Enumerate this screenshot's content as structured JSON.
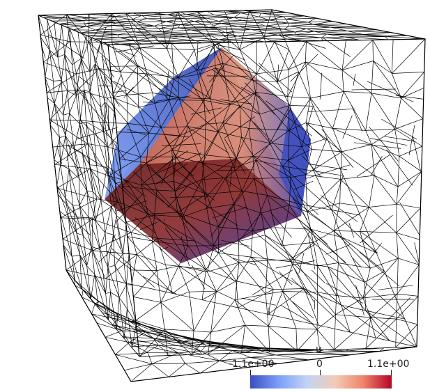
{
  "colorbar": {
    "title": "u",
    "min_label": "-1.1e+00",
    "mid_label": "0",
    "max_label": "1.1e+00",
    "colors": [
      "#3b4cc0",
      "#7b9ff9",
      "#c0d4f5",
      "#f2cbb7",
      "#ee8468",
      "#b40426"
    ]
  },
  "mesh": {
    "line_color": "#000000",
    "background": "#ffffff"
  }
}
